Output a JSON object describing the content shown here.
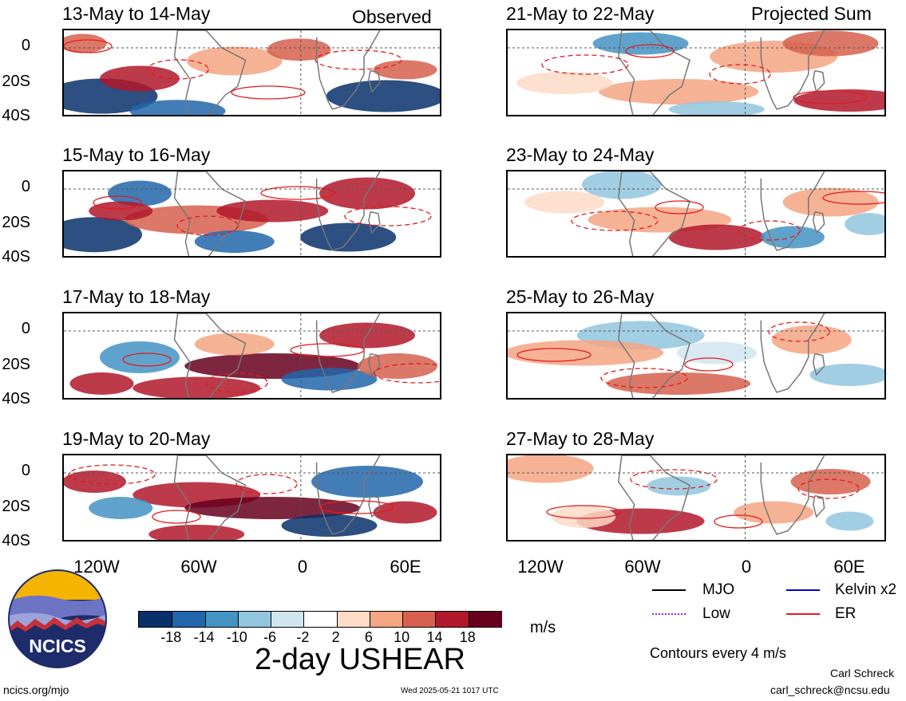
{
  "columns": {
    "left": "Observed",
    "right": "Projected Sum"
  },
  "panels": {
    "left": [
      "13-May to 14-May",
      "15-May to 16-May",
      "17-May to 18-May",
      "19-May to 20-May"
    ],
    "right": [
      "21-May to 22-May",
      "23-May to 24-May",
      "25-May to 26-May",
      "27-May to 28-May"
    ]
  },
  "yticks": [
    "0",
    "20S",
    "40S"
  ],
  "xticks": [
    "120W",
    "60W",
    "0",
    "60E"
  ],
  "colorbar": {
    "colors": [
      "#08306b",
      "#2166ac",
      "#4393c3",
      "#92c5de",
      "#d1e5f0",
      "#ffffff",
      "#fddbc7",
      "#f4a582",
      "#d6604d",
      "#b2182b",
      "#67001f"
    ],
    "labels": [
      "-18",
      "-14",
      "-10",
      "-6",
      "-2",
      "2",
      "6",
      "10",
      "14",
      "18"
    ],
    "unit": "m/s",
    "title": "2-day USHEAR"
  },
  "legend": {
    "items": [
      {
        "label": "MJO",
        "color": "#000000",
        "style": "solid"
      },
      {
        "label": "Kelvin x2",
        "color": "#0000cc",
        "style": "solid"
      },
      {
        "label": "Low",
        "color": "#a020f0",
        "style": "dotted"
      },
      {
        "label": "ER",
        "color": "#e41a1c",
        "style": "solid"
      }
    ],
    "note": "Contours every 4 m/s"
  },
  "logo": {
    "text": "NCICS"
  },
  "footer": {
    "url": "ncics.org/mjo",
    "timestamp": "Wed 2025-05-21 1017 UTC",
    "author": "Carl Schreck",
    "email": "carl_schreck@ncsu.edu"
  },
  "chart_data": {
    "type": "heatmap",
    "title": "2-day USHEAR",
    "variable": "USHEAR",
    "unit": "m/s",
    "color_levels": [
      -18,
      -14,
      -10,
      -6,
      -2,
      2,
      6,
      10,
      14,
      18
    ],
    "xlim": [
      "150W",
      "90E"
    ],
    "ylim": [
      "40S",
      "10N"
    ],
    "xticks": [
      "120W",
      "60W",
      "0",
      "60E"
    ],
    "yticks": [
      "0",
      "20S",
      "40S"
    ],
    "contour_interval_ms": 4,
    "grid": "dashed lines at equator and prime meridian",
    "legend_position": "bottom-right",
    "panels": [
      {
        "label": "13-May to 14-May",
        "group": "Observed"
      },
      {
        "label": "15-May to 16-May",
        "group": "Observed"
      },
      {
        "label": "17-May to 18-May",
        "group": "Observed"
      },
      {
        "label": "19-May to 20-May",
        "group": "Observed"
      },
      {
        "label": "21-May to 22-May",
        "group": "Projected Sum"
      },
      {
        "label": "23-May to 24-May",
        "group": "Projected Sum"
      },
      {
        "label": "25-May to 26-May",
        "group": "Projected Sum"
      },
      {
        "label": "27-May to 28-May",
        "group": "Projected Sum"
      }
    ]
  }
}
